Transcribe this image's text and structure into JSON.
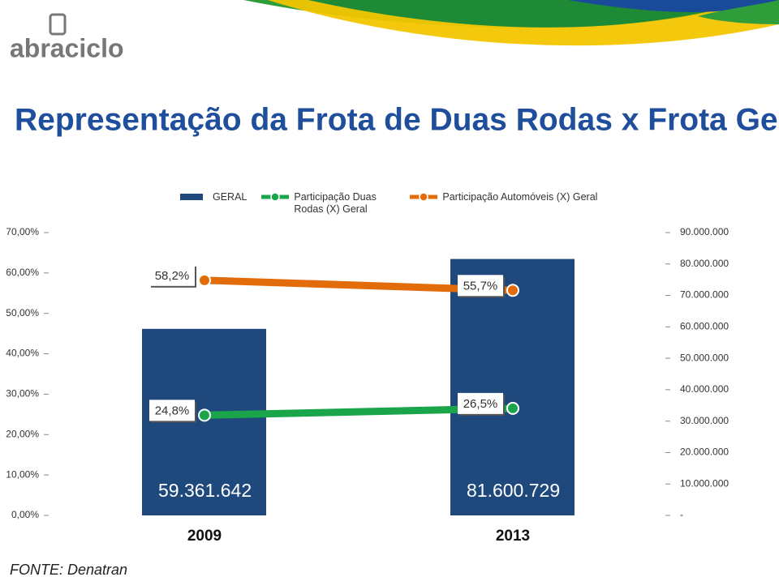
{
  "logo": "abraciclo",
  "chart_data": {
    "type": "bar",
    "title": "Representação da Frota de Duas Rodas x Frota Geral",
    "source": "FONTE: Denatran",
    "categories": [
      "2009",
      "2013"
    ],
    "series": [
      {
        "name": "GERAL",
        "type": "bar",
        "axis": "y2",
        "color": "#1f497d",
        "values": [
          59361642,
          81600729
        ],
        "value_labels": [
          "59.361.642",
          "81.600.729"
        ]
      },
      {
        "name": "Participação Duas Rodas (X) Geral",
        "type": "line",
        "axis": "y",
        "color": "#1aa54a",
        "values": [
          24.8,
          26.5
        ],
        "value_labels": [
          "24,8%",
          "26,5%"
        ]
      },
      {
        "name": "Participação Automóveis (X) Geral",
        "type": "line",
        "axis": "y",
        "color": "#e36c0a",
        "values": [
          58.2,
          55.7
        ],
        "value_labels": [
          "58,2%",
          "55,7%"
        ]
      }
    ],
    "ylim": [
      0,
      70
    ],
    "yticks": [
      {
        "value": 0,
        "label": "0,00%"
      },
      {
        "value": 10,
        "label": "10,00%"
      },
      {
        "value": 20,
        "label": "20,00%"
      },
      {
        "value": 30,
        "label": "30,00%"
      },
      {
        "value": 40,
        "label": "40,00%"
      },
      {
        "value": 50,
        "label": "50,00%"
      },
      {
        "value": 60,
        "label": "60,00%"
      },
      {
        "value": 70,
        "label": "70,00%"
      }
    ],
    "y2lim": [
      0,
      90000000
    ],
    "y2ticks": [
      {
        "value": 0,
        "label": "-"
      },
      {
        "value": 10000000,
        "label": "10.000.000"
      },
      {
        "value": 20000000,
        "label": "20.000.000"
      },
      {
        "value": 30000000,
        "label": "30.000.000"
      },
      {
        "value": 40000000,
        "label": "40.000.000"
      },
      {
        "value": 50000000,
        "label": "50.000.000"
      },
      {
        "value": 60000000,
        "label": "60.000.000"
      },
      {
        "value": 70000000,
        "label": "70.000.000"
      },
      {
        "value": 80000000,
        "label": "80.000.000"
      },
      {
        "value": 90000000,
        "label": "90.000.000"
      }
    ],
    "legend": "top"
  }
}
